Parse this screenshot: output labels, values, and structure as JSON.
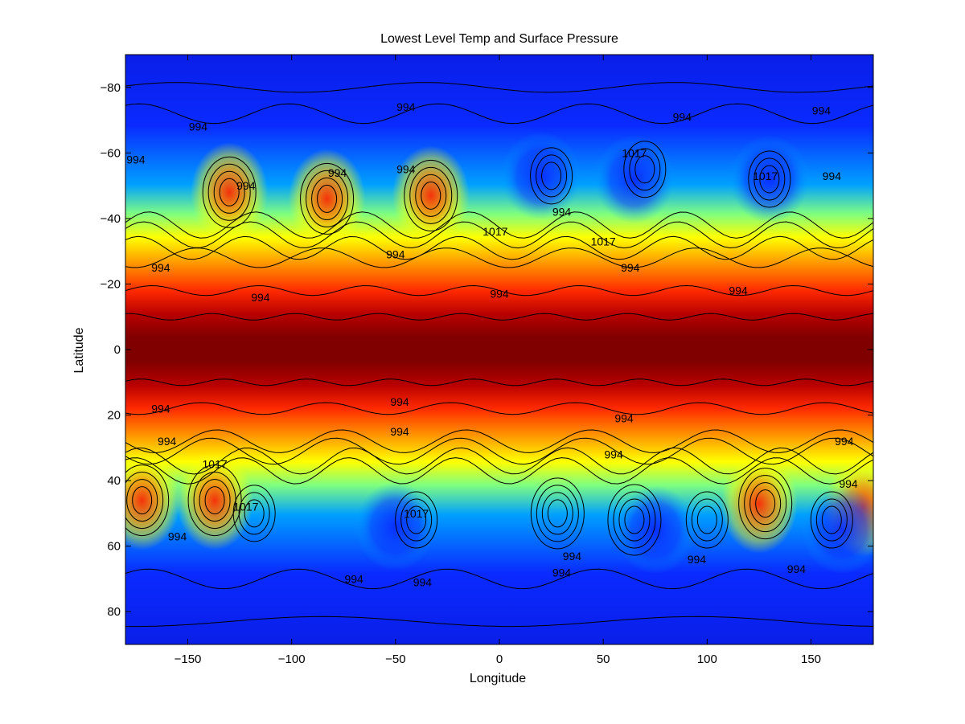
{
  "chart_data": {
    "type": "heatmap",
    "title": "Lowest Level Temp and Surface Pressure",
    "xlabel": "Longitude",
    "ylabel": "Latitude",
    "xlim": [
      -180,
      180
    ],
    "ylim": [
      -90,
      90
    ],
    "y_direction": "reversed",
    "x_ticks": [
      -150,
      -100,
      -50,
      0,
      50,
      100,
      150
    ],
    "y_ticks": [
      -80,
      -60,
      -40,
      -20,
      0,
      20,
      40,
      60,
      80
    ],
    "colormap": "jet",
    "colors": {
      "cold": "#0a1ee8",
      "cool": "#00c8ff",
      "mild": "#ffff00",
      "warm": "#ff2a00",
      "hot": "#800000"
    },
    "field": "Lowest Level Temp",
    "contour_field": "Surface Pressure",
    "contour_labels": [
      {
        "text": "994",
        "lon": -45,
        "lat": -74
      },
      {
        "text": "994",
        "lon": -145,
        "lat": -68
      },
      {
        "text": "994",
        "lon": 88,
        "lat": -71
      },
      {
        "text": "994",
        "lon": 155,
        "lat": -73
      },
      {
        "text": "994",
        "lon": -175,
        "lat": -58
      },
      {
        "text": "1017",
        "lon": 65,
        "lat": -60
      },
      {
        "text": "994",
        "lon": -78,
        "lat": -54
      },
      {
        "text": "994",
        "lon": -45,
        "lat": -55
      },
      {
        "text": "994",
        "lon": -122,
        "lat": -50
      },
      {
        "text": "1017",
        "lon": 128,
        "lat": -53
      },
      {
        "text": "994",
        "lon": 160,
        "lat": -53
      },
      {
        "text": "994",
        "lon": 30,
        "lat": -42
      },
      {
        "text": "1017",
        "lon": -2,
        "lat": -36
      },
      {
        "text": "1017",
        "lon": 50,
        "lat": -33
      },
      {
        "text": "994",
        "lon": -163,
        "lat": -25
      },
      {
        "text": "994",
        "lon": -50,
        "lat": -29
      },
      {
        "text": "994",
        "lon": 63,
        "lat": -25
      },
      {
        "text": "994",
        "lon": -115,
        "lat": -16
      },
      {
        "text": "994",
        "lon": 0,
        "lat": -17
      },
      {
        "text": "994",
        "lon": 115,
        "lat": -18
      },
      {
        "text": "994",
        "lon": -163,
        "lat": 18
      },
      {
        "text": "994",
        "lon": -48,
        "lat": 16
      },
      {
        "text": "994",
        "lon": 60,
        "lat": 21
      },
      {
        "text": "994",
        "lon": -160,
        "lat": 28
      },
      {
        "text": "994",
        "lon": -48,
        "lat": 25
      },
      {
        "text": "994",
        "lon": 55,
        "lat": 32
      },
      {
        "text": "994",
        "lon": 166,
        "lat": 28
      },
      {
        "text": "1017",
        "lon": -137,
        "lat": 35
      },
      {
        "text": "1017",
        "lon": -122,
        "lat": 48
      },
      {
        "text": "1017",
        "lon": -40,
        "lat": 50
      },
      {
        "text": "994",
        "lon": 168,
        "lat": 41
      },
      {
        "text": "994",
        "lon": -155,
        "lat": 57
      },
      {
        "text": "994",
        "lon": 35,
        "lat": 63
      },
      {
        "text": "994",
        "lon": 95,
        "lat": 64
      },
      {
        "text": "994",
        "lon": -70,
        "lat": 70
      },
      {
        "text": "994",
        "lon": -37,
        "lat": 71
      },
      {
        "text": "994",
        "lon": 30,
        "lat": 68
      },
      {
        "text": "994",
        "lon": 143,
        "lat": 67
      }
    ],
    "warm_centers": [
      {
        "lon": -130,
        "lat": -48
      },
      {
        "lon": -83,
        "lat": -46
      },
      {
        "lon": -33,
        "lat": -47
      },
      {
        "lon": -172,
        "lat": 46
      },
      {
        "lon": -137,
        "lat": 46
      },
      {
        "lon": 125,
        "lat": 47
      },
      {
        "lon": 175,
        "lat": 48
      }
    ],
    "cold_centers": [
      {
        "lon": 65,
        "lat": -52
      },
      {
        "lon": 130,
        "lat": -52
      },
      {
        "lon": 20,
        "lat": -53
      },
      {
        "lon": -50,
        "lat": 54
      },
      {
        "lon": 75,
        "lat": 55
      },
      {
        "lon": 165,
        "lat": 55
      }
    ],
    "pressure_low_centers": [
      {
        "lon": -130,
        "lat": -48
      },
      {
        "lon": -83,
        "lat": -46
      },
      {
        "lon": -33,
        "lat": -47
      },
      {
        "lon": -172,
        "lat": 46
      },
      {
        "lon": -137,
        "lat": 46
      },
      {
        "lon": 28,
        "lat": 50
      },
      {
        "lon": 65,
        "lat": 52
      },
      {
        "lon": 128,
        "lat": 47
      }
    ],
    "pressure_high_centers": [
      {
        "lon": 25,
        "lat": -53
      },
      {
        "lon": 70,
        "lat": -55
      },
      {
        "lon": 130,
        "lat": -52
      },
      {
        "lon": -118,
        "lat": 50
      },
      {
        "lon": -40,
        "lat": 52
      },
      {
        "lon": 100,
        "lat": 52
      },
      {
        "lon": 160,
        "lat": 52
      }
    ]
  }
}
